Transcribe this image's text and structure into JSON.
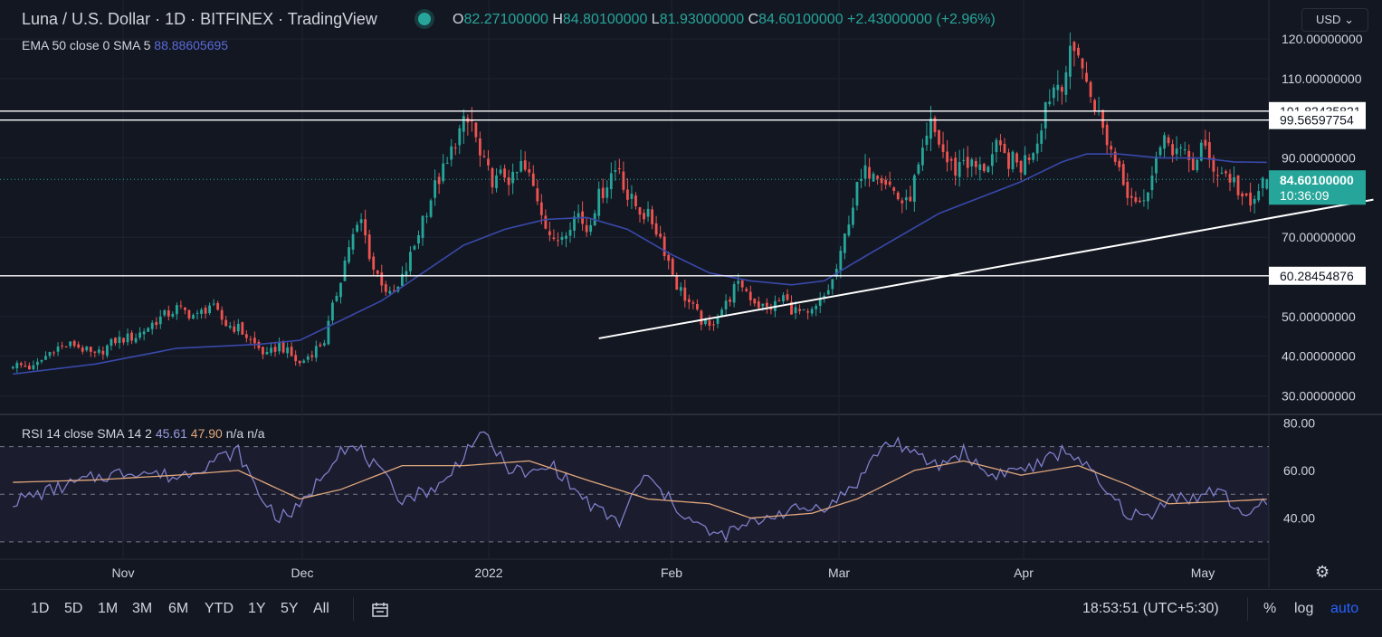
{
  "header": {
    "symbol": "Luna / U.S. Dollar · 1D · BITFINEX · TradingView",
    "o_label": "O",
    "o": "82.27100000",
    "h_label": "H",
    "h": "84.80100000",
    "l_label": "L",
    "l": "81.93000000",
    "c_label": "C",
    "c": "84.60100000",
    "change": "+2.43000000 (+2.96%)",
    "currency": "USD"
  },
  "ema_legend": {
    "label": "EMA 50 close 0 SMA 5",
    "value": "88.88605695"
  },
  "rsi_legend": {
    "label": "RSI 14 close SMA 14 2",
    "v1": "45.61",
    "v2": "47.90",
    "na": "n/a n/a"
  },
  "colors": {
    "bg": "#131722",
    "up": "#26a69a",
    "down": "#ef5350",
    "ema": "#3949ab",
    "rsi": "#7e7ec9",
    "rsi_ma": "#e0a77c",
    "grid": "#1f2331"
  },
  "toolbar": {
    "timeframes": [
      "1D",
      "5D",
      "1M",
      "3M",
      "6M",
      "YTD",
      "1Y",
      "5Y",
      "All"
    ],
    "clock": "18:53:51 (UTC+5:30)",
    "pct": "%",
    "log": "log",
    "auto": "auto",
    "gear_icon": "gear-icon",
    "calendar_icon": "calendar-range-icon"
  },
  "chart_data": [
    {
      "type": "candlestick",
      "title": "Luna / U.S. Dollar · 1D · BITFINEX",
      "y_ticks": [
        "120.00000000",
        "110.00000000",
        "90.00000000",
        "70.00000000",
        "50.00000000",
        "40.00000000",
        "30.00000000"
      ],
      "y_tick_values": [
        120,
        110,
        90,
        70,
        50,
        40,
        30
      ],
      "ylim": [
        26,
        123
      ],
      "x_ticks": [
        "Nov",
        "Dec",
        "2022",
        "Feb",
        "Mar",
        "Apr",
        "May"
      ],
      "price_lines": [
        {
          "value": 101.82435821,
          "label": "101.82435821"
        },
        {
          "value": 99.56597754,
          "label": "99.56597754"
        },
        {
          "value": 60.28454876,
          "label": "60.28454876"
        }
      ],
      "last_price": {
        "value": 84.601,
        "label": "84.60100000",
        "countdown": "10:36:09"
      },
      "trendline": {
        "from": {
          "date": "Feb 1 2022",
          "value": 44.5
        },
        "to": {
          "date": "May 14 2022",
          "value": 79.5
        }
      },
      "close_keypoints": [
        [
          0,
          38
        ],
        [
          5,
          37
        ],
        [
          10,
          42
        ],
        [
          15,
          43
        ],
        [
          20,
          40
        ],
        [
          25,
          44
        ],
        [
          30,
          45
        ],
        [
          35,
          49
        ],
        [
          40,
          52
        ],
        [
          45,
          50
        ],
        [
          48,
          53
        ],
        [
          52,
          48
        ],
        [
          55,
          47
        ],
        [
          60,
          42
        ],
        [
          62,
          40
        ],
        [
          65,
          43
        ],
        [
          68,
          40
        ],
        [
          70,
          38
        ],
        [
          73,
          41
        ],
        [
          76,
          44
        ],
        [
          78,
          52
        ],
        [
          80,
          60
        ],
        [
          82,
          68
        ],
        [
          85,
          74
        ],
        [
          88,
          62
        ],
        [
          90,
          59
        ],
        [
          92,
          55
        ],
        [
          94,
          57
        ],
        [
          96,
          62
        ],
        [
          98,
          68
        ],
        [
          100,
          75
        ],
        [
          102,
          80
        ],
        [
          104,
          85
        ],
        [
          106,
          88
        ],
        [
          108,
          95
        ],
        [
          110,
          98
        ],
        [
          112,
          99
        ],
        [
          114,
          90
        ],
        [
          116,
          86
        ],
        [
          118,
          84
        ],
        [
          120,
          86
        ],
        [
          122,
          84
        ],
        [
          124,
          88
        ],
        [
          126,
          85
        ],
        [
          128,
          80
        ],
        [
          130,
          74
        ],
        [
          132,
          68
        ],
        [
          134,
          71
        ],
        [
          136,
          74
        ],
        [
          138,
          76
        ],
        [
          140,
          72
        ],
        [
          142,
          78
        ],
        [
          144,
          82
        ],
        [
          146,
          86
        ],
        [
          148,
          88
        ],
        [
          150,
          80
        ],
        [
          152,
          78
        ],
        [
          154,
          76
        ],
        [
          156,
          74
        ],
        [
          158,
          70
        ],
        [
          160,
          64
        ],
        [
          162,
          58
        ],
        [
          164,
          55
        ],
        [
          166,
          52
        ],
        [
          168,
          49
        ],
        [
          170,
          47
        ],
        [
          172,
          51
        ],
        [
          174,
          53
        ],
        [
          176,
          57
        ],
        [
          178,
          58
        ],
        [
          180,
          55
        ],
        [
          182,
          53
        ],
        [
          184,
          52
        ],
        [
          186,
          53
        ],
        [
          188,
          55
        ],
        [
          190,
          52
        ],
        [
          192,
          51
        ],
        [
          194,
          50
        ],
        [
          196,
          52
        ],
        [
          198,
          55
        ],
        [
          200,
          59
        ],
        [
          202,
          65
        ],
        [
          204,
          75
        ],
        [
          206,
          82
        ],
        [
          208,
          86
        ],
        [
          210,
          88
        ],
        [
          212,
          86
        ],
        [
          214,
          83
        ],
        [
          216,
          80
        ],
        [
          218,
          78
        ],
        [
          220,
          84
        ],
        [
          222,
          90
        ],
        [
          224,
          98
        ],
        [
          226,
          94
        ],
        [
          228,
          89
        ],
        [
          230,
          87
        ],
        [
          232,
          90
        ],
        [
          234,
          88
        ],
        [
          236,
          87
        ],
        [
          238,
          89
        ],
        [
          240,
          92
        ],
        [
          242,
          90
        ],
        [
          244,
          89
        ],
        [
          246,
          88
        ],
        [
          248,
          91
        ],
        [
          250,
          95
        ],
        [
          252,
          104
        ],
        [
          254,
          108
        ],
        [
          256,
          110
        ],
        [
          258,
          115
        ],
        [
          260,
          118
        ],
        [
          262,
          108
        ],
        [
          264,
          104
        ],
        [
          266,
          97
        ],
        [
          268,
          92
        ],
        [
          270,
          88
        ],
        [
          272,
          82
        ],
        [
          274,
          80
        ],
        [
          276,
          78
        ],
        [
          278,
          88
        ],
        [
          280,
          92
        ],
        [
          282,
          94
        ],
        [
          284,
          92
        ],
        [
          286,
          90
        ],
        [
          288,
          88
        ],
        [
          290,
          93
        ],
        [
          292,
          89
        ],
        [
          294,
          87
        ],
        [
          296,
          86
        ],
        [
          298,
          84
        ],
        [
          300,
          80
        ],
        [
          302,
          77
        ],
        [
          304,
          82
        ],
        [
          306,
          84.6
        ]
      ],
      "ema50_keypoints": [
        [
          0,
          35.5
        ],
        [
          20,
          38
        ],
        [
          40,
          42
        ],
        [
          60,
          43
        ],
        [
          70,
          44
        ],
        [
          80,
          49
        ],
        [
          90,
          54
        ],
        [
          100,
          61
        ],
        [
          110,
          68
        ],
        [
          120,
          72
        ],
        [
          130,
          74.5
        ],
        [
          140,
          75
        ],
        [
          150,
          72
        ],
        [
          160,
          66
        ],
        [
          170,
          61
        ],
        [
          180,
          59
        ],
        [
          190,
          58
        ],
        [
          198,
          59
        ],
        [
          206,
          64
        ],
        [
          216,
          70
        ],
        [
          226,
          76
        ],
        [
          236,
          80
        ],
        [
          246,
          84
        ],
        [
          256,
          89
        ],
        [
          262,
          91
        ],
        [
          270,
          91
        ],
        [
          280,
          90
        ],
        [
          290,
          90
        ],
        [
          298,
          89
        ],
        [
          306,
          88.9
        ]
      ]
    },
    {
      "type": "line",
      "title": "RSI 14 close SMA 14 2",
      "y_ticks": [
        "80.00",
        "60.00",
        "40.00"
      ],
      "y_tick_values": [
        80,
        60,
        40
      ],
      "ylim": [
        25,
        82
      ],
      "bands": {
        "upper": 70,
        "middle": 50,
        "lower": 30
      },
      "rsi_keypoints": [
        [
          0,
          47
        ],
        [
          10,
          52
        ],
        [
          20,
          57
        ],
        [
          30,
          60
        ],
        [
          40,
          57
        ],
        [
          50,
          65
        ],
        [
          55,
          68
        ],
        [
          60,
          50
        ],
        [
          65,
          40
        ],
        [
          70,
          44
        ],
        [
          80,
          70
        ],
        [
          85,
          68
        ],
        [
          90,
          58
        ],
        [
          95,
          48
        ],
        [
          105,
          54
        ],
        [
          112,
          72
        ],
        [
          116,
          74
        ],
        [
          120,
          62
        ],
        [
          126,
          58
        ],
        [
          132,
          62
        ],
        [
          138,
          50
        ],
        [
          142,
          44
        ],
        [
          148,
          38
        ],
        [
          154,
          58
        ],
        [
          160,
          48
        ],
        [
          166,
          38
        ],
        [
          172,
          32
        ],
        [
          178,
          36
        ],
        [
          186,
          42
        ],
        [
          194,
          44
        ],
        [
          200,
          46
        ],
        [
          206,
          55
        ],
        [
          212,
          70
        ],
        [
          216,
          72
        ],
        [
          220,
          66
        ],
        [
          226,
          62
        ],
        [
          232,
          68
        ],
        [
          238,
          58
        ],
        [
          244,
          60
        ],
        [
          250,
          62
        ],
        [
          256,
          68
        ],
        [
          260,
          66
        ],
        [
          266,
          52
        ],
        [
          272,
          42
        ],
        [
          278,
          40
        ],
        [
          282,
          50
        ],
        [
          288,
          48
        ],
        [
          294,
          52
        ],
        [
          300,
          42
        ],
        [
          306,
          45.6
        ]
      ],
      "rsi_ma_keypoints": [
        [
          0,
          55
        ],
        [
          20,
          56
        ],
        [
          40,
          58
        ],
        [
          55,
          60
        ],
        [
          70,
          48
        ],
        [
          80,
          52
        ],
        [
          95,
          62
        ],
        [
          110,
          62
        ],
        [
          126,
          64
        ],
        [
          140,
          56
        ],
        [
          155,
          48
        ],
        [
          170,
          46
        ],
        [
          180,
          40
        ],
        [
          195,
          42
        ],
        [
          206,
          48
        ],
        [
          220,
          60
        ],
        [
          232,
          64
        ],
        [
          246,
          58
        ],
        [
          260,
          62
        ],
        [
          272,
          54
        ],
        [
          282,
          46
        ],
        [
          296,
          47
        ],
        [
          306,
          47.9
        ]
      ],
      "rsi_value": "45.61",
      "rsi_ma_value": "47.90"
    }
  ]
}
